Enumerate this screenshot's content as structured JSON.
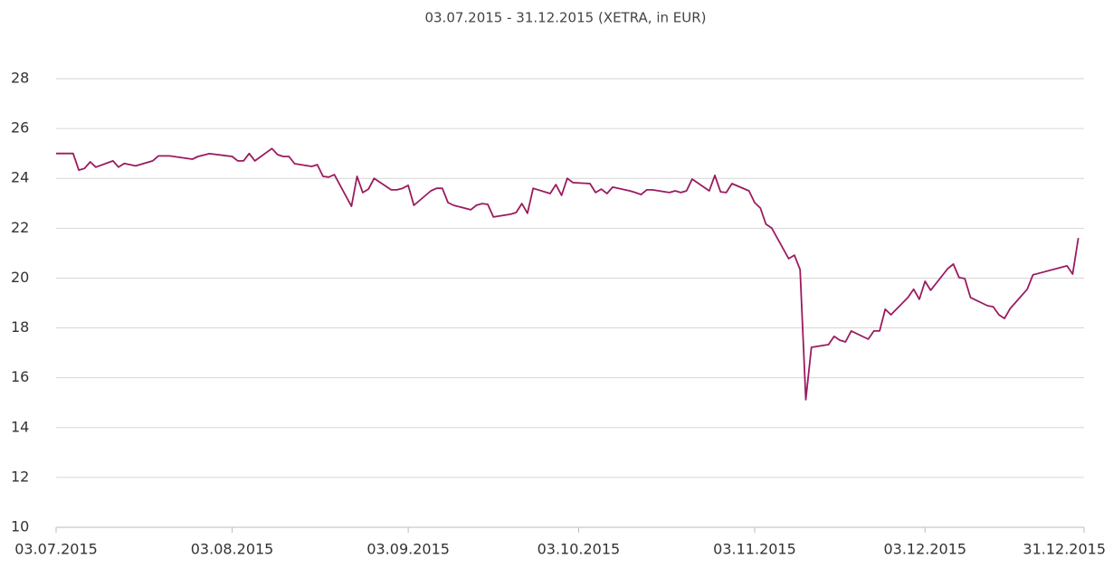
{
  "chart_data": {
    "type": "line",
    "title": "03.07.2015 - 31.12.2015 (XETRA, in EUR)",
    "color": "#9b1b5f",
    "x": [
      "03.07.2015",
      "06.07.2015",
      "07.07.2015",
      "08.07.2015",
      "09.07.2015",
      "10.07.2015",
      "13.07.2015",
      "14.07.2015",
      "15.07.2015",
      "17.07.2015",
      "20.07.2015",
      "21.07.2015",
      "23.07.2015",
      "27.07.2015",
      "28.07.2015",
      "30.07.2015",
      "03.08.2015",
      "04.08.2015",
      "05.08.2015",
      "06.08.2015",
      "07.08.2015",
      "10.08.2015",
      "11.08.2015",
      "12.08.2015",
      "13.08.2015",
      "14.08.2015",
      "17.08.2015",
      "18.08.2015",
      "19.08.2015",
      "20.08.2015",
      "21.08.2015",
      "24.08.2015",
      "25.08.2015",
      "26.08.2015",
      "27.08.2015",
      "28.08.2015",
      "31.08.2015",
      "01.09.2015",
      "02.09.2015",
      "03.09.2015",
      "04.09.2015",
      "07.09.2015",
      "08.09.2015",
      "09.09.2015",
      "10.09.2015",
      "11.09.2015",
      "14.09.2015",
      "15.09.2015",
      "16.09.2015",
      "17.09.2015",
      "18.09.2015",
      "21.09.2015",
      "22.09.2015",
      "23.09.2015",
      "24.09.2015",
      "25.09.2015",
      "28.09.2015",
      "29.09.2015",
      "30.09.2015",
      "01.10.2015",
      "02.10.2015",
      "05.10.2015",
      "06.10.2015",
      "07.10.2015",
      "08.10.2015",
      "09.10.2015",
      "12.10.2015",
      "13.10.2015",
      "14.10.2015",
      "15.10.2015",
      "16.10.2015",
      "19.10.2015",
      "20.10.2015",
      "21.10.2015",
      "22.10.2015",
      "23.10.2015",
      "26.10.2015",
      "27.10.2015",
      "28.10.2015",
      "29.10.2015",
      "30.10.2015",
      "02.11.2015",
      "03.11.2015",
      "04.11.2015",
      "05.11.2015",
      "06.11.2015",
      "09.11.2015",
      "10.11.2015",
      "11.11.2015",
      "12.11.2015",
      "13.11.2015",
      "16.11.2015",
      "17.11.2015",
      "18.11.2015",
      "19.11.2015",
      "20.11.2015",
      "23.11.2015",
      "24.11.2015",
      "25.11.2015",
      "26.11.2015",
      "27.11.2015",
      "30.11.2015",
      "01.12.2015",
      "02.12.2015",
      "03.12.2015",
      "04.12.2015",
      "07.12.2015",
      "08.12.2015",
      "09.12.2015",
      "10.12.2015",
      "11.12.2015",
      "14.12.2015",
      "15.12.2015",
      "16.12.2015",
      "17.12.2015",
      "18.12.2015",
      "21.12.2015",
      "22.12.2015",
      "28.12.2015",
      "29.12.2015",
      "30.12.2015"
    ],
    "values": [
      25.0,
      25.0,
      24.33,
      24.4,
      24.66,
      24.45,
      24.7,
      24.45,
      24.6,
      24.5,
      24.7,
      24.9,
      24.9,
      24.77,
      24.88,
      24.99,
      24.88,
      24.7,
      24.7,
      25.0,
      24.7,
      25.2,
      24.95,
      24.88,
      24.88,
      24.59,
      24.48,
      24.55,
      24.08,
      24.05,
      24.15,
      22.88,
      24.08,
      23.43,
      23.57,
      24.0,
      23.54,
      23.54,
      23.6,
      23.72,
      22.92,
      23.5,
      23.6,
      23.6,
      23.03,
      22.92,
      22.74,
      22.92,
      22.99,
      22.96,
      22.45,
      22.56,
      22.63,
      22.99,
      22.6,
      23.6,
      23.39,
      23.75,
      23.32,
      24.0,
      23.83,
      23.79,
      23.43,
      23.57,
      23.39,
      23.65,
      23.5,
      23.43,
      23.35,
      23.54,
      23.54,
      23.43,
      23.5,
      23.43,
      23.5,
      23.97,
      23.5,
      24.12,
      23.46,
      23.43,
      23.79,
      23.5,
      23.03,
      22.81,
      22.16,
      22.01,
      20.78,
      20.92,
      20.34,
      15.12,
      17.22,
      17.33,
      17.66,
      17.51,
      17.44,
      17.88,
      17.55,
      17.88,
      17.88,
      18.75,
      18.53,
      19.22,
      19.55,
      19.15,
      19.87,
      19.51,
      20.38,
      20.56,
      20.02,
      19.98,
      19.22,
      18.89,
      18.85,
      18.53,
      18.38,
      18.78,
      19.55,
      20.13,
      20.49,
      20.16,
      21.61
    ],
    "xlim": [
      "03.07.2015",
      "31.12.2015"
    ],
    "xticks": [
      "03.07.2015",
      "03.08.2015",
      "03.09.2015",
      "03.10.2015",
      "03.11.2015",
      "03.12.2015",
      "31.12.2015"
    ],
    "ylim": [
      10,
      28
    ],
    "yticks": [
      10,
      12,
      14,
      16,
      18,
      20,
      22,
      24,
      26,
      28
    ],
    "grid": true
  }
}
